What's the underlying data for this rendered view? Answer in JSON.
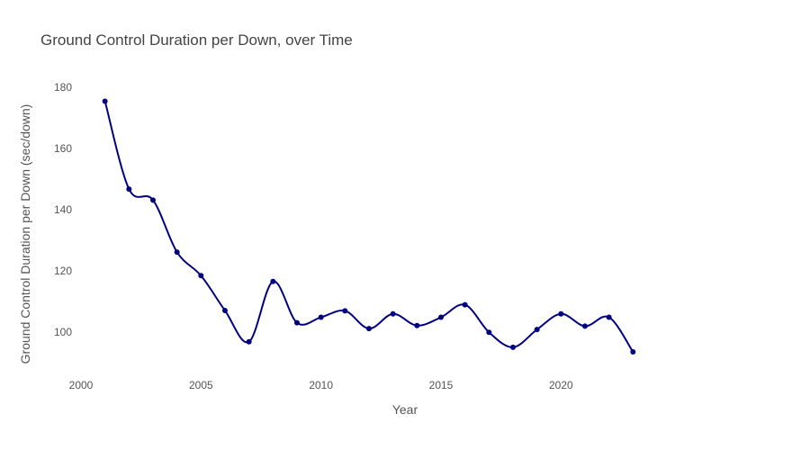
{
  "chart_data": {
    "type": "line",
    "title": "Ground Control Duration per Down, over Time",
    "xlabel": "Year",
    "ylabel": "Ground Control Duration per Down (sec/down)",
    "x": [
      2001,
      2002,
      2003,
      2004,
      2005,
      2006,
      2007,
      2008,
      2009,
      2010,
      2011,
      2012,
      2013,
      2014,
      2015,
      2016,
      2017,
      2018,
      2019,
      2020,
      2021,
      2022,
      2023
    ],
    "series": [
      {
        "values": [
          175.5,
          146.8,
          143.2,
          126.2,
          118.5,
          107.1,
          96.9,
          116.6,
          103.1,
          104.9,
          107.0,
          101.2,
          106.0,
          102.2,
          104.9,
          109.0,
          100.0,
          95.1,
          100.9,
          106.0,
          102.0,
          104.9,
          93.6
        ],
        "color": "#000080"
      }
    ],
    "xlim": [
      2000,
      2027
    ],
    "ylim": [
      88,
      188
    ],
    "xticks": [
      2000,
      2005,
      2010,
      2015,
      2020
    ],
    "yticks": [
      100,
      120,
      140,
      160,
      180
    ],
    "grid": false,
    "legend": "none",
    "line_shape": "spline"
  }
}
